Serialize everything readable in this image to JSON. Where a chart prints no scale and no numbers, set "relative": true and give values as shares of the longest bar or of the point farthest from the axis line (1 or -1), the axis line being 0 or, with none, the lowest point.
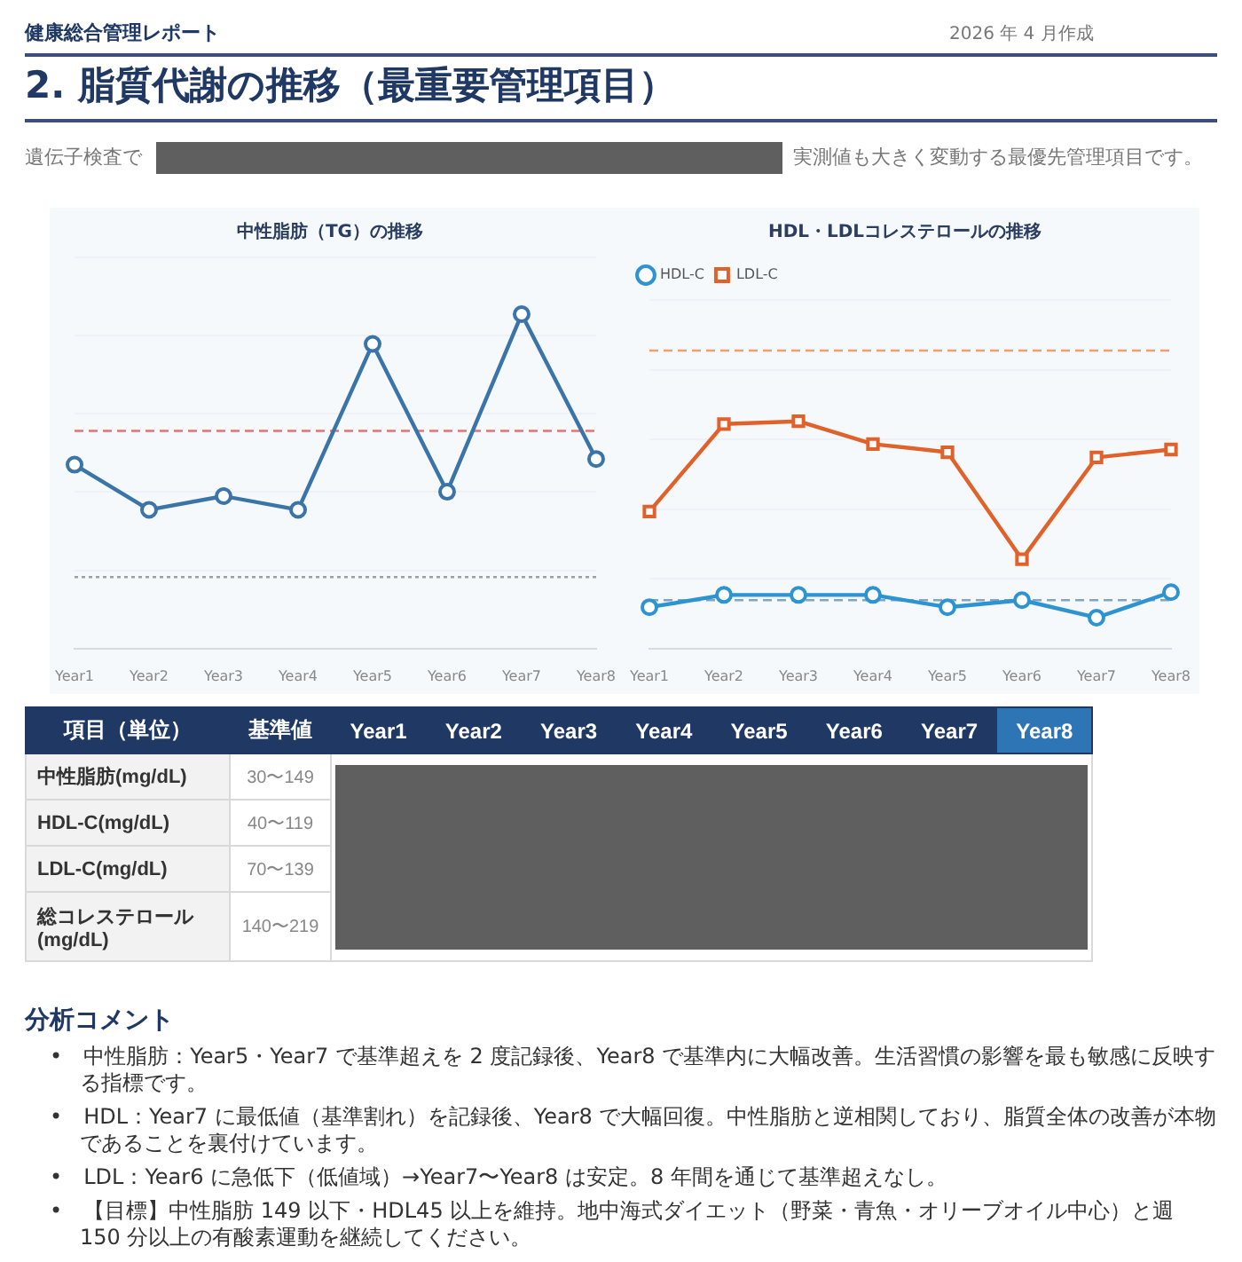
{
  "chart_data": [
    {
      "type": "other",
      "title": "2. 脂質代謝の推移（最重要管理項目）",
      "annotations": [
        "健康総合管理レポート",
        "2026 年 4 月作成",
        "遺伝子検査で",
        "実測値も大きく変動する最優先管理項目です。"
      ]
    },
    {
      "type": "line",
      "title": "中性脂肪（TG）の推移",
      "relative": true,
      "categories": [
        "Year1",
        "Year2",
        "Year3",
        "Year4",
        "Year5",
        "Year6",
        "Year7",
        "Year8"
      ],
      "series": [
        {
          "color": "#3b74a8",
          "values": [
            0.55,
            0.415,
            0.456,
            0.415,
            0.911,
            0.469,
            1,
            0.567
          ]
        }
      ],
      "ref_lines": [
        {
          "axis": "y",
          "value": 0.651,
          "color": "#e57373",
          "line_style": "dashed"
        },
        {
          "axis": "y",
          "value": 0.214,
          "color": "#9e9e9e",
          "line_style": "dotted"
        }
      ],
      "grid": "y",
      "marker": "circle",
      "line_style": "solid",
      "legend": false
    },
    {
      "type": "line",
      "title": "HDL・LDLコレステロールの推移",
      "relative": true,
      "categories": [
        "Year1",
        "Year2",
        "Year3",
        "Year4",
        "Year5",
        "Year6",
        "Year7",
        "Year8"
      ],
      "series": [
        {
          "name": "HDL-C",
          "color": "#2e93d1",
          "marker": "circle",
          "values": [
            0.182,
            0.236,
            0.236,
            0.236,
            0.182,
            0.213,
            0.136,
            0.248
          ]
        },
        {
          "name": "LDL-C",
          "color": "#e0622a",
          "marker": "square",
          "values": [
            0.603,
            0.988,
            1,
            0.9,
            0.864,
            0.393,
            0.841,
            0.876
          ]
        }
      ],
      "ref_lines": [
        {
          "axis": "y",
          "value": 1.311,
          "color": "#f0a070",
          "line_style": "dashed"
        },
        {
          "axis": "y",
          "value": 0.213,
          "color": "#7fa6c6",
          "line_style": "dashed"
        }
      ],
      "grid": "y",
      "line_style": "solid",
      "legend": "top left"
    },
    {
      "type": "other",
      "categories": [
        "項目（単位）",
        "基準値",
        "Year1",
        "Year2",
        "Year3",
        "Year4",
        "Year5",
        "Year6",
        "Year7",
        "Year8"
      ],
      "y_categories": [
        "中性脂肪(mg/dL)",
        "HDL-C(mg/dL)",
        "LDL-C(mg/dL)",
        "総コレステロール(mg/dL)"
      ],
      "y2_categories": [
        "30〜149",
        "40〜119",
        "70〜139",
        "140〜219"
      ]
    },
    {
      "type": "other",
      "title": "分析コメント",
      "annotations": [
        "•　中性脂肪：Year5・Year7 で基準超えを 2 度記録後、Year8 で基準内に大幅改善。生活習慣の影響を最も敏感に反映する指標です。",
        "•　HDL：Year7 に最低値（基準割れ）を記録後、Year8 で大幅回復。中性脂肪と逆相関しており、脂質全体の改善が本物であることを裏付けています。",
        "•　LDL：Year6 に急低下（低値域）→Year7〜Year8 は安定。8 年間を通じて基準超えなし。",
        "•　【目標】中性脂肪 149 以下・HDL45 以上を維持。地中海式ダイエット（野菜・青魚・オリーブオイル中心）と週 150 分以上の有酸素運動を継続してください。"
      ]
    }
  ]
}
